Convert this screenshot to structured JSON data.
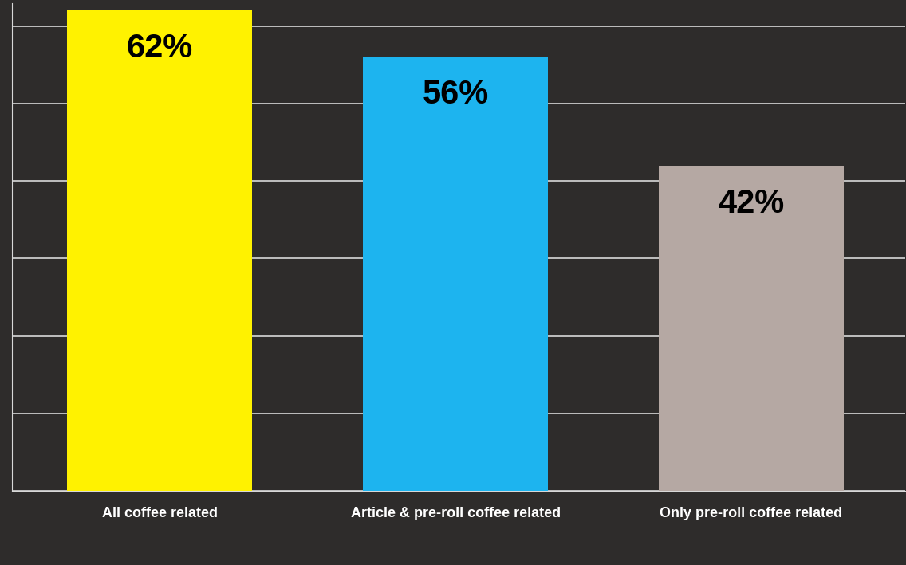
{
  "chart_data": {
    "type": "bar",
    "categories": [
      "All coffee related",
      "Article & pre-roll coffee related",
      "Only pre-roll coffee related"
    ],
    "values": [
      62,
      56,
      42
    ],
    "value_labels": [
      "62%",
      "56%",
      "42%"
    ],
    "colors": [
      "#fff200",
      "#1db4ef",
      "#b5a8a3"
    ],
    "ylim": [
      0,
      63
    ],
    "yticks": [
      0,
      10,
      20,
      30,
      40,
      50,
      60
    ],
    "grid": true,
    "data_labels": true,
    "tick_labels": "x"
  }
}
